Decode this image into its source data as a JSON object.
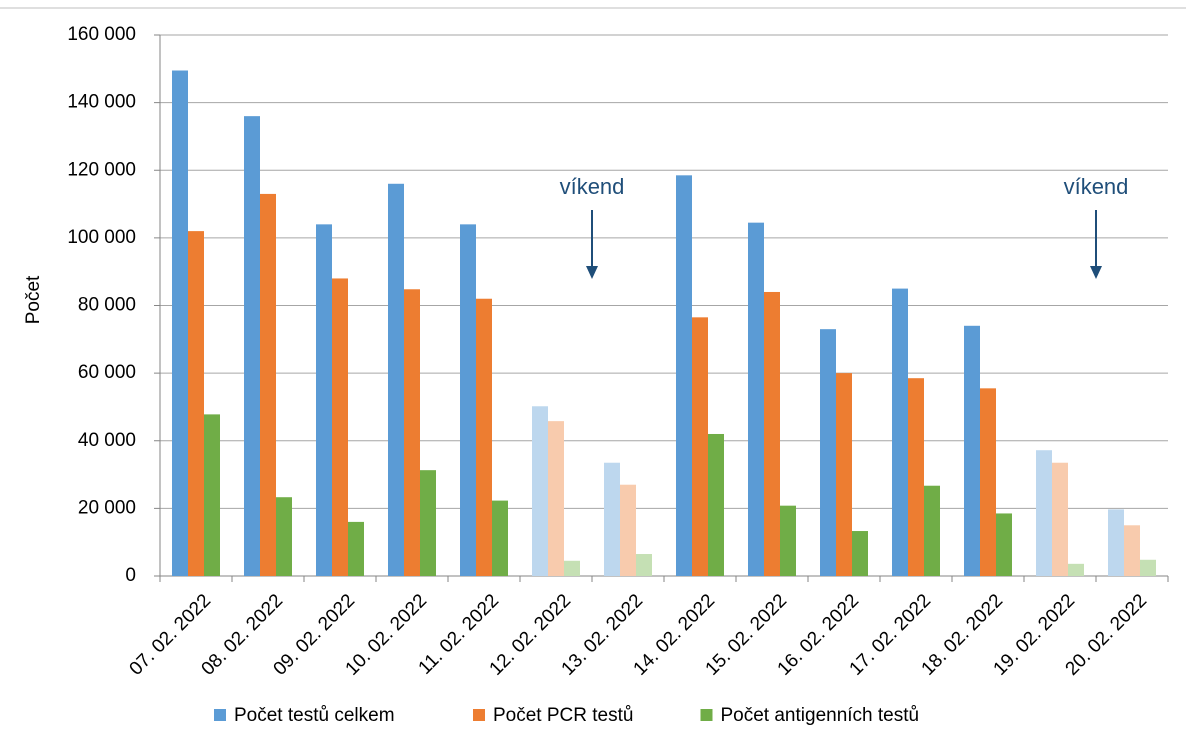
{
  "chart_data": {
    "type": "bar",
    "y_label": "Počet",
    "categories": [
      "07. 02. 2022",
      "08. 02. 2022",
      "09. 02. 2022",
      "10. 02. 2022",
      "11. 02. 2022",
      "12. 02. 2022",
      "13. 02. 2022",
      "14. 02. 2022",
      "15. 02. 2022",
      "16. 02. 2022",
      "17. 02. 2022",
      "18. 02. 2022",
      "19. 02. 2022",
      "20. 02. 2022"
    ],
    "series": [
      {
        "name": "Počet testů celkem",
        "color": "#5b9bd5",
        "colors": [
          "#5b9bd5",
          "#5b9bd5",
          "#5b9bd5",
          "#5b9bd5",
          "#5b9bd5",
          "#bdd7ee",
          "#bdd7ee",
          "#5b9bd5",
          "#5b9bd5",
          "#5b9bd5",
          "#5b9bd5",
          "#5b9bd5",
          "#bdd7ee",
          "#bdd7ee"
        ],
        "values": [
          149500,
          136000,
          104000,
          116000,
          104000,
          50200,
          33500,
          118500,
          104500,
          73000,
          85000,
          74000,
          37200,
          19700
        ]
      },
      {
        "name": "Počet PCR testů",
        "color": "#ed7d31",
        "colors": [
          "#ed7d31",
          "#ed7d31",
          "#ed7d31",
          "#ed7d31",
          "#ed7d31",
          "#f8cbad",
          "#f8cbad",
          "#ed7d31",
          "#ed7d31",
          "#ed7d31",
          "#ed7d31",
          "#ed7d31",
          "#f8cbad",
          "#f8cbad"
        ],
        "values": [
          102000,
          113000,
          88000,
          84800,
          82000,
          45800,
          27000,
          76500,
          84000,
          60000,
          58500,
          55500,
          33500,
          15000
        ]
      },
      {
        "name": "Počet antigenních testů",
        "color": "#70ad47",
        "colors": [
          "#70ad47",
          "#70ad47",
          "#70ad47",
          "#70ad47",
          "#70ad47",
          "#c5e0b4",
          "#c5e0b4",
          "#70ad47",
          "#70ad47",
          "#70ad47",
          "#70ad47",
          "#70ad47",
          "#c5e0b4",
          "#c5e0b4"
        ],
        "values": [
          47800,
          23300,
          16000,
          31300,
          22300,
          4500,
          6500,
          42000,
          20800,
          13300,
          26700,
          18500,
          3600,
          4800
        ]
      }
    ],
    "annotations": [
      {
        "text": "víkend"
      },
      {
        "text": "víkend"
      }
    ],
    "ylim": [
      0,
      160000
    ],
    "yticks": [
      0,
      {
        "value": 20000,
        "label": "20 000"
      },
      {
        "value": 40000,
        "label": "40 000"
      },
      {
        "value": 60000,
        "label": "60 000"
      },
      {
        "value": 80000,
        "label": "80 000"
      },
      {
        "value": 100000,
        "label": "100 000"
      },
      {
        "value": 120000,
        "label": "120 000"
      },
      {
        "value": 140000,
        "label": "140 000"
      },
      {
        "value": 160000,
        "label": "160 000"
      }
    ],
    "grid": true,
    "legend": "bottom"
  }
}
